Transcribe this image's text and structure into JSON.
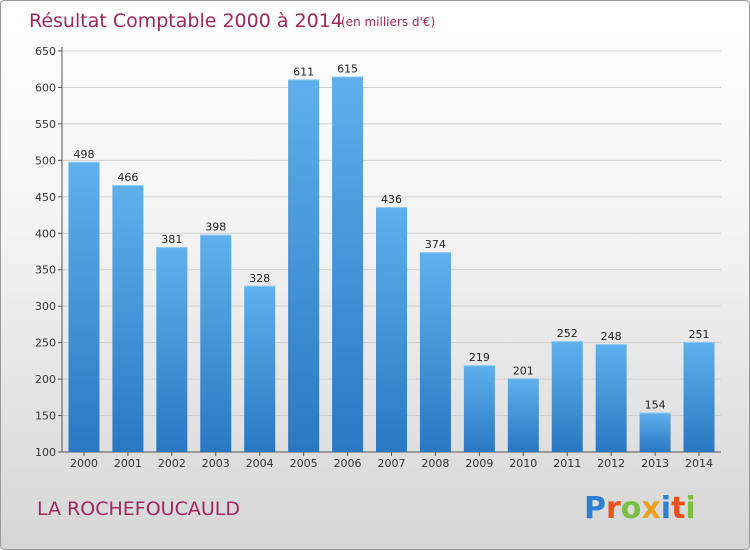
{
  "chart_data": {
    "type": "bar",
    "title": "Résultat Comptable 2000 à 2014",
    "subtitle": "(en milliers d'€)",
    "categories": [
      "2000",
      "2001",
      "2002",
      "2003",
      "2004",
      "2005",
      "2006",
      "2007",
      "2008",
      "2009",
      "2010",
      "2011",
      "2012",
      "2013",
      "2014"
    ],
    "values": [
      498,
      466,
      381,
      398,
      328,
      611,
      615,
      436,
      374,
      219,
      201,
      252,
      248,
      154,
      251
    ],
    "ylim": [
      100,
      650
    ],
    "yticks": [
      100,
      150,
      200,
      250,
      300,
      350,
      400,
      450,
      500,
      550,
      600,
      650
    ],
    "grid": true,
    "legend": "none",
    "bar_color": "#3c8fd8",
    "xlabel": "",
    "ylabel": ""
  },
  "footer": {
    "location": "LA ROCHEFOUCAULD",
    "brand": "Proxiti",
    "brand_colors": [
      "#2f7fd3",
      "#e8521f",
      "#7cc043",
      "#e8a01f",
      "#2f7fd3",
      "#e8521f",
      "#7cc043"
    ]
  }
}
